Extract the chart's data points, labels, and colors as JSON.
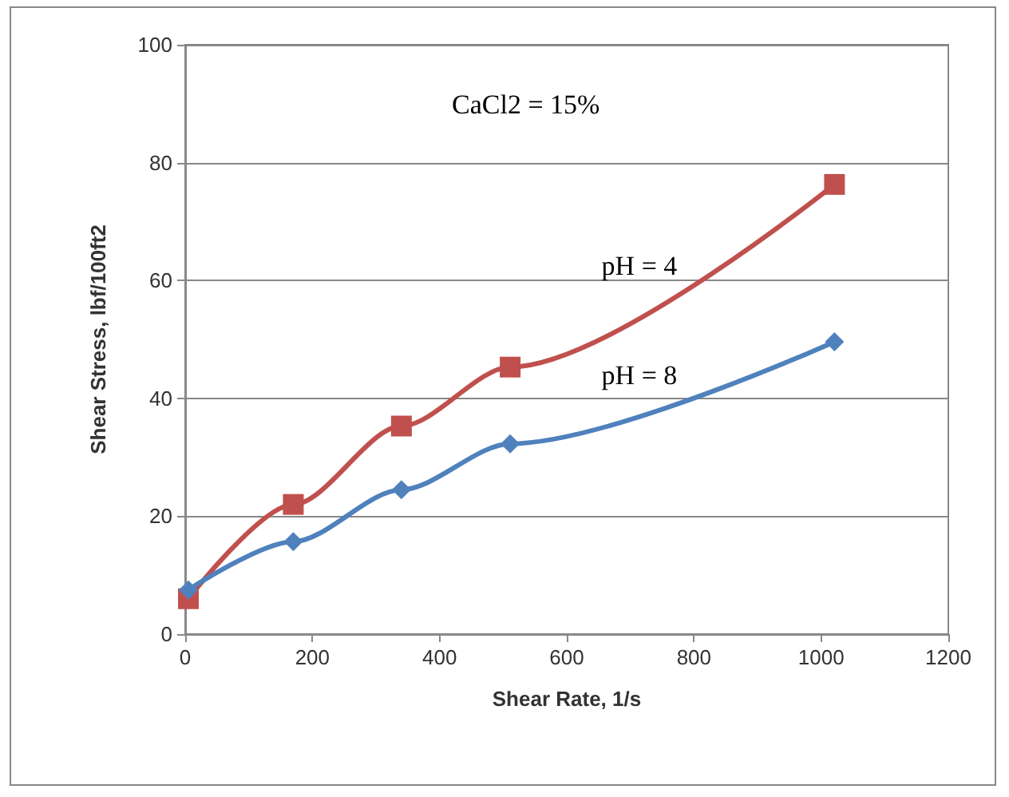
{
  "chart_data": {
    "type": "line",
    "xlabel": "Shear Rate, 1/s",
    "ylabel": "Shear Stress, lbf/100ft2",
    "annotations": [
      "CaCl2 = 15%"
    ],
    "xlim": [
      0,
      1200
    ],
    "xticks": [
      0,
      200,
      400,
      600,
      800,
      1000,
      1200
    ],
    "ylim": [
      0,
      100
    ],
    "yticks": [
      0,
      20,
      40,
      60,
      80,
      100
    ],
    "grid": "y",
    "legend": false,
    "line_style": "solid",
    "series": [
      {
        "name": "pH = 4",
        "color": "#c0504d",
        "marker": "square",
        "x": [
          5,
          170,
          340,
          511,
          1021
        ],
        "values": [
          6,
          22,
          35.3,
          45.3,
          76.3
        ]
      },
      {
        "name": "pH = 8",
        "color": "#4f81bd",
        "marker": "diamond",
        "x": [
          5,
          170,
          340,
          511,
          1021
        ],
        "values": [
          7.5,
          15.7,
          24.5,
          32.3,
          49.6
        ]
      }
    ]
  }
}
